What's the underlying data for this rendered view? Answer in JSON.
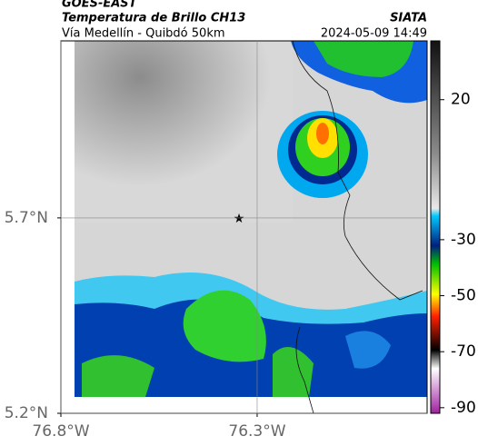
{
  "header": {
    "title": "GOES-EAST",
    "subtitle": "Temperatura de Brillo CH13",
    "location": "Vía Medellín - Quibdó 50km",
    "source": "SIATA",
    "datetime": "2024-05-09 14:49"
  },
  "map": {
    "xlim": [
      -76.8,
      -75.867
    ],
    "ylim": [
      5.2,
      6.153
    ],
    "xticks": [
      {
        "value": -76.8,
        "label": "76.8°W"
      },
      {
        "value": -76.3,
        "label": "76.3°W"
      }
    ],
    "yticks": [
      {
        "value": 5.7,
        "label": "5.7°N"
      },
      {
        "value": 5.2,
        "label": "5.2°N"
      }
    ],
    "grid": true
  },
  "colorbar": {
    "clim": [
      -92,
      41
    ],
    "ticks": [
      20,
      -30,
      -50,
      -70,
      -90
    ]
  }
}
